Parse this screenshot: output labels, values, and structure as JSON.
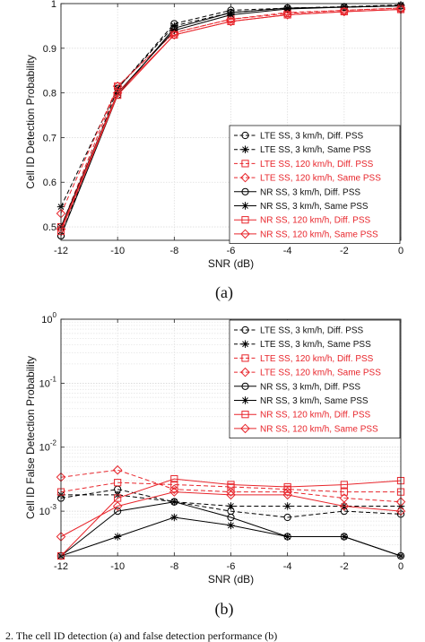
{
  "chart_data": [
    {
      "type": "line",
      "panel_label": "(a)",
      "xlabel": "SNR (dB)",
      "ylabel": "Cell ID Detection Probability",
      "x": [
        -12,
        -10,
        -8,
        -6,
        -4,
        -2,
        0
      ],
      "xlim": [
        -12,
        0
      ],
      "ylim": [
        0.47,
        1.0
      ],
      "yscale": "linear",
      "yticks": [
        0.5,
        0.6,
        0.7,
        0.8,
        0.9,
        1
      ],
      "grid": true,
      "legend_position": "lower-right",
      "series": [
        {
          "name": "LTE SS, 3 km/h, Diff. PSS",
          "color": "#000000",
          "dash": "dashed",
          "marker": "circle",
          "values": [
            0.48,
            0.81,
            0.955,
            0.985,
            0.99,
            0.992,
            0.995
          ]
        },
        {
          "name": "LTE SS, 3 km/h, Same PSS",
          "color": "#000000",
          "dash": "dashed",
          "marker": "star",
          "values": [
            0.545,
            0.81,
            0.95,
            0.98,
            0.99,
            0.993,
            0.997
          ]
        },
        {
          "name": "LTE SS, 120 km/h, Diff. PSS",
          "color": "#e8262c",
          "dash": "dashed",
          "marker": "square",
          "values": [
            0.5,
            0.815,
            0.935,
            0.965,
            0.978,
            0.985,
            0.99
          ]
        },
        {
          "name": "LTE SS, 120 km/h, Same PSS",
          "color": "#e8262c",
          "dash": "dashed",
          "marker": "diamond",
          "values": [
            0.53,
            0.815,
            0.935,
            0.965,
            0.98,
            0.985,
            0.99
          ]
        },
        {
          "name": "NR SS, 3 km/h, Diff. PSS",
          "color": "#000000",
          "dash": "solid",
          "marker": "circle",
          "values": [
            0.48,
            0.795,
            0.945,
            0.98,
            0.99,
            0.992,
            0.995
          ]
        },
        {
          "name": "NR SS, 3 km/h, Same PSS",
          "color": "#000000",
          "dash": "solid",
          "marker": "star",
          "values": [
            0.5,
            0.8,
            0.94,
            0.975,
            0.988,
            0.992,
            0.995
          ]
        },
        {
          "name": "NR SS, 120 km/h, Diff. PSS",
          "color": "#e8262c",
          "dash": "solid",
          "marker": "square",
          "values": [
            0.49,
            0.795,
            0.93,
            0.96,
            0.975,
            0.982,
            0.987
          ]
        },
        {
          "name": "NR SS, 120 km/h, Same PSS",
          "color": "#e8262c",
          "dash": "solid",
          "marker": "diamond",
          "values": [
            0.495,
            0.8,
            0.93,
            0.96,
            0.975,
            0.982,
            0.987
          ]
        }
      ]
    },
    {
      "type": "line",
      "panel_label": "(b)",
      "xlabel": "SNR (dB)",
      "ylabel": "Cell ID False Detection Probability",
      "x": [
        -12,
        -10,
        -8,
        -6,
        -4,
        -2,
        0
      ],
      "xlim": [
        -12,
        0
      ],
      "ylim": [
        0.0002,
        1
      ],
      "yscale": "log",
      "yticks": [
        0.001,
        0.01,
        0.1,
        1
      ],
      "ytick_labels": [
        {
          "base": "10",
          "exp": "-3"
        },
        {
          "base": "10",
          "exp": "-2"
        },
        {
          "base": "10",
          "exp": "-1"
        },
        {
          "base": "10",
          "exp": "0"
        }
      ],
      "grid": true,
      "legend_position": "upper-right",
      "series": [
        {
          "name": "LTE SS, 3 km/h, Diff. PSS",
          "color": "#000000",
          "dash": "dashed",
          "marker": "circle",
          "values": [
            0.0016,
            0.0022,
            0.0014,
            0.001,
            0.0008,
            0.001,
            0.0009
          ]
        },
        {
          "name": "LTE SS, 3 km/h, Same PSS",
          "color": "#000000",
          "dash": "dashed",
          "marker": "star",
          "values": [
            0.0018,
            0.0018,
            0.0014,
            0.0012,
            0.0012,
            0.0012,
            0.0012
          ]
        },
        {
          "name": "LTE SS, 120 km/h, Diff. PSS",
          "color": "#e8262c",
          "dash": "dashed",
          "marker": "square",
          "values": [
            0.002,
            0.0028,
            0.0026,
            0.0024,
            0.0022,
            0.002,
            0.002
          ]
        },
        {
          "name": "LTE SS, 120 km/h, Same PSS",
          "color": "#e8262c",
          "dash": "dashed",
          "marker": "diamond",
          "values": [
            0.0034,
            0.0044,
            0.0022,
            0.002,
            0.002,
            0.0016,
            0.0014
          ]
        },
        {
          "name": "NR SS, 3 km/h, Diff. PSS",
          "color": "#000000",
          "dash": "solid",
          "marker": "circle",
          "values": [
            0.0002,
            0.001,
            0.0014,
            0.0008,
            0.0004,
            0.0004,
            0.0002
          ]
        },
        {
          "name": "NR SS, 3 km/h, Same PSS",
          "color": "#000000",
          "dash": "solid",
          "marker": "star",
          "values": [
            0.0002,
            0.0004,
            0.0008,
            0.0006,
            0.0004,
            0.0004,
            0.0002
          ]
        },
        {
          "name": "NR SS, 120 km/h, Diff. PSS",
          "color": "#e8262c",
          "dash": "solid",
          "marker": "square",
          "values": [
            0.0002,
            0.0016,
            0.0032,
            0.0026,
            0.0024,
            0.0026,
            0.003
          ]
        },
        {
          "name": "NR SS, 120 km/h, Same PSS",
          "color": "#e8262c",
          "dash": "solid",
          "marker": "diamond",
          "values": [
            0.0004,
            0.0012,
            0.002,
            0.0018,
            0.0018,
            0.0012,
            0.001
          ]
        }
      ]
    }
  ],
  "caption_fragment": "2. The cell ID detection (a) and false detection performance (b)"
}
